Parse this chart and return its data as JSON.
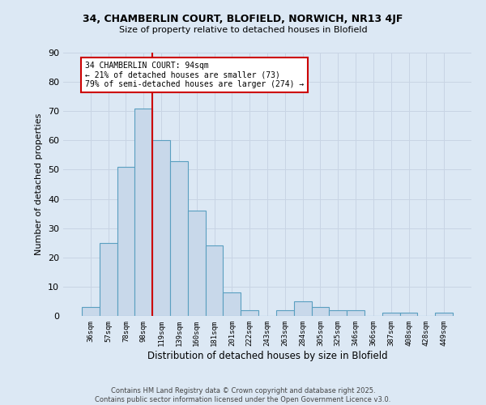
{
  "title1": "34, CHAMBERLIN COURT, BLOFIELD, NORWICH, NR13 4JF",
  "title2": "Size of property relative to detached houses in Blofield",
  "xlabel": "Distribution of detached houses by size in Blofield",
  "ylabel": "Number of detached properties",
  "categories": [
    "36sqm",
    "57sqm",
    "78sqm",
    "98sqm",
    "119sqm",
    "139sqm",
    "160sqm",
    "181sqm",
    "201sqm",
    "222sqm",
    "243sqm",
    "263sqm",
    "284sqm",
    "305sqm",
    "325sqm",
    "346sqm",
    "366sqm",
    "387sqm",
    "408sqm",
    "428sqm",
    "449sqm"
  ],
  "values": [
    3,
    25,
    51,
    71,
    60,
    53,
    36,
    24,
    8,
    2,
    0,
    2,
    5,
    3,
    2,
    2,
    0,
    1,
    1,
    0,
    1
  ],
  "bar_color": "#c8d8ea",
  "bar_edge_color": "#5a9fc0",
  "property_line_x": 3.5,
  "annotation_text": "34 CHAMBERLIN COURT: 94sqm\n← 21% of detached houses are smaller (73)\n79% of semi-detached houses are larger (274) →",
  "annotation_box_color": "#ffffff",
  "annotation_edge_color": "#cc0000",
  "property_line_color": "#cc0000",
  "grid_color": "#c8d4e4",
  "background_color": "#dce8f4",
  "footer": "Contains HM Land Registry data © Crown copyright and database right 2025.\nContains public sector information licensed under the Open Government Licence v3.0.",
  "ylim": [
    0,
    90
  ],
  "yticks": [
    0,
    10,
    20,
    30,
    40,
    50,
    60,
    70,
    80,
    90
  ]
}
